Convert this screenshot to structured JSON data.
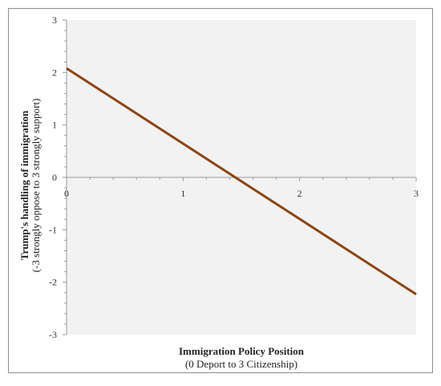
{
  "chart_data": {
    "type": "line",
    "title": "",
    "xlabel": "Immigration Policy Position",
    "xlabel_sub": "(0 Deport to 3 Citizenship)",
    "ylabel": "Trump's handling of immigration",
    "ylabel_sub": "(-3 strongly oppose to 3 strongly support)",
    "xlim": [
      0,
      3
    ],
    "ylim": [
      -3,
      3
    ],
    "x_ticks": [
      0,
      1,
      2,
      3
    ],
    "y_ticks": [
      -3,
      -2,
      -1,
      0,
      1,
      2,
      3
    ],
    "x_tick_labels": [
      "0",
      "1",
      "2",
      "3"
    ],
    "y_tick_labels": [
      "-3",
      "-2",
      "-1",
      "0",
      "1",
      "2",
      "3"
    ],
    "grid": false,
    "plot_background": "#f2f2f2",
    "series": [
      {
        "color": "#8b4513",
        "x": [
          0,
          3
        ],
        "y": [
          2.08,
          -2.23
        ]
      }
    ]
  }
}
